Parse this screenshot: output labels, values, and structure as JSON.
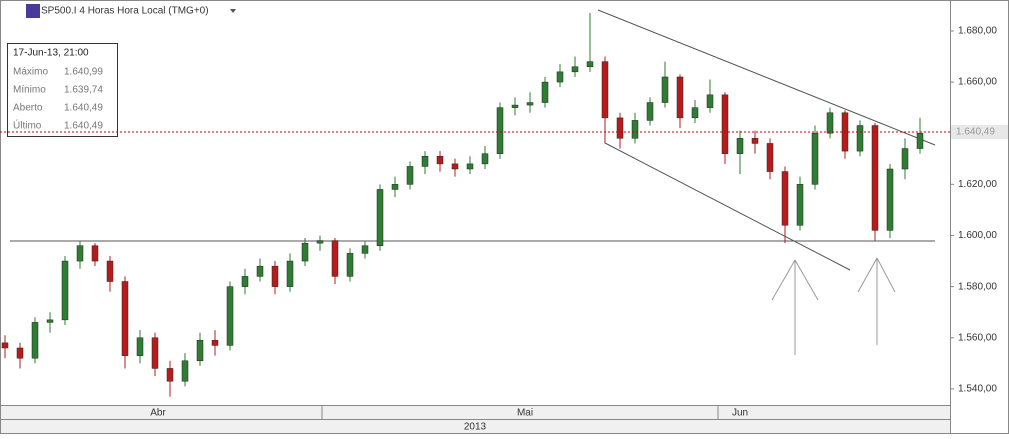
{
  "chart_data": {
    "type": "candlestick",
    "title": "SP500.I 4 Horas Hora Local (TMG+0)",
    "info": {
      "date": "17-Jun-13, 21:00",
      "rows": [
        [
          "Máximo",
          "1.640,99"
        ],
        [
          "Mínimo",
          "1.639,74"
        ],
        [
          "Aberto",
          "1.640,49"
        ],
        [
          "Último",
          "1.640,49"
        ]
      ]
    },
    "last_price": {
      "value": 1.64049,
      "label": "1.640,49"
    },
    "months": [
      "Abr",
      "Mai",
      "Jun"
    ],
    "year": "2013",
    "up_color": "#2e7d32",
    "down_color": "#b71c1c",
    "ylim": [
      1.5337,
      1.6921
    ],
    "yticks": [
      {
        "value": 1.54,
        "label": "1.540,00"
      },
      {
        "value": 1.56,
        "label": "1.560,00"
      },
      {
        "value": 1.58,
        "label": "1.580,00"
      },
      {
        "value": 1.6,
        "label": "1.600,00"
      },
      {
        "value": 1.62,
        "label": "1.620,00"
      },
      {
        "value": 1.64,
        "label": "1.640,00"
      },
      {
        "value": 1.66,
        "label": "1.660,00"
      },
      {
        "value": 1.68,
        "label": "1.680,00"
      }
    ],
    "candles": [
      {
        "o": 1.558,
        "h": 1.561,
        "l": 1.552,
        "c": 1.556
      },
      {
        "o": 1.556,
        "h": 1.558,
        "l": 1.548,
        "c": 1.552
      },
      {
        "o": 1.552,
        "h": 1.568,
        "l": 1.55,
        "c": 1.566
      },
      {
        "o": 1.566,
        "h": 1.57,
        "l": 1.562,
        "c": 1.567
      },
      {
        "o": 1.567,
        "h": 1.592,
        "l": 1.565,
        "c": 1.59
      },
      {
        "o": 1.59,
        "h": 1.598,
        "l": 1.587,
        "c": 1.596
      },
      {
        "o": 1.596,
        "h": 1.597,
        "l": 1.588,
        "c": 1.59
      },
      {
        "o": 1.59,
        "h": 1.592,
        "l": 1.578,
        "c": 1.582
      },
      {
        "o": 1.582,
        "h": 1.584,
        "l": 1.548,
        "c": 1.553
      },
      {
        "o": 1.553,
        "h": 1.563,
        "l": 1.55,
        "c": 1.56
      },
      {
        "o": 1.56,
        "h": 1.562,
        "l": 1.545,
        "c": 1.548
      },
      {
        "o": 1.548,
        "h": 1.551,
        "l": 1.537,
        "c": 1.543
      },
      {
        "o": 1.543,
        "h": 1.554,
        "l": 1.541,
        "c": 1.551
      },
      {
        "o": 1.551,
        "h": 1.562,
        "l": 1.549,
        "c": 1.559
      },
      {
        "o": 1.559,
        "h": 1.563,
        "l": 1.553,
        "c": 1.557
      },
      {
        "o": 1.557,
        "h": 1.582,
        "l": 1.555,
        "c": 1.58
      },
      {
        "o": 1.58,
        "h": 1.587,
        "l": 1.577,
        "c": 1.584
      },
      {
        "o": 1.584,
        "h": 1.591,
        "l": 1.582,
        "c": 1.588
      },
      {
        "o": 1.588,
        "h": 1.59,
        "l": 1.577,
        "c": 1.58
      },
      {
        "o": 1.58,
        "h": 1.593,
        "l": 1.578,
        "c": 1.59
      },
      {
        "o": 1.59,
        "h": 1.599,
        "l": 1.588,
        "c": 1.597
      },
      {
        "o": 1.597,
        "h": 1.6,
        "l": 1.594,
        "c": 1.598
      },
      {
        "o": 1.598,
        "h": 1.599,
        "l": 1.581,
        "c": 1.584
      },
      {
        "o": 1.584,
        "h": 1.595,
        "l": 1.582,
        "c": 1.593
      },
      {
        "o": 1.593,
        "h": 1.598,
        "l": 1.591,
        "c": 1.596
      },
      {
        "o": 1.596,
        "h": 1.62,
        "l": 1.594,
        "c": 1.618
      },
      {
        "o": 1.618,
        "h": 1.623,
        "l": 1.615,
        "c": 1.62
      },
      {
        "o": 1.62,
        "h": 1.629,
        "l": 1.618,
        "c": 1.627
      },
      {
        "o": 1.627,
        "h": 1.633,
        "l": 1.624,
        "c": 1.631
      },
      {
        "o": 1.631,
        "h": 1.633,
        "l": 1.625,
        "c": 1.628
      },
      {
        "o": 1.628,
        "h": 1.63,
        "l": 1.623,
        "c": 1.626
      },
      {
        "o": 1.626,
        "h": 1.631,
        "l": 1.624,
        "c": 1.628
      },
      {
        "o": 1.628,
        "h": 1.635,
        "l": 1.626,
        "c": 1.632
      },
      {
        "o": 1.632,
        "h": 1.652,
        "l": 1.63,
        "c": 1.65
      },
      {
        "o": 1.65,
        "h": 1.654,
        "l": 1.647,
        "c": 1.651
      },
      {
        "o": 1.651,
        "h": 1.656,
        "l": 1.648,
        "c": 1.652
      },
      {
        "o": 1.652,
        "h": 1.662,
        "l": 1.65,
        "c": 1.66
      },
      {
        "o": 1.66,
        "h": 1.667,
        "l": 1.658,
        "c": 1.664
      },
      {
        "o": 1.664,
        "h": 1.67,
        "l": 1.662,
        "c": 1.666
      },
      {
        "o": 1.666,
        "h": 1.687,
        "l": 1.664,
        "c": 1.668
      },
      {
        "o": 1.668,
        "h": 1.67,
        "l": 1.636,
        "c": 1.646
      },
      {
        "o": 1.646,
        "h": 1.648,
        "l": 1.634,
        "c": 1.638
      },
      {
        "o": 1.638,
        "h": 1.648,
        "l": 1.636,
        "c": 1.645
      },
      {
        "o": 1.645,
        "h": 1.654,
        "l": 1.643,
        "c": 1.652
      },
      {
        "o": 1.652,
        "h": 1.668,
        "l": 1.65,
        "c": 1.662
      },
      {
        "o": 1.662,
        "h": 1.663,
        "l": 1.642,
        "c": 1.646
      },
      {
        "o": 1.646,
        "h": 1.653,
        "l": 1.644,
        "c": 1.65
      },
      {
        "o": 1.65,
        "h": 1.661,
        "l": 1.648,
        "c": 1.655
      },
      {
        "o": 1.655,
        "h": 1.656,
        "l": 1.628,
        "c": 1.632
      },
      {
        "o": 1.632,
        "h": 1.641,
        "l": 1.624,
        "c": 1.638
      },
      {
        "o": 1.638,
        "h": 1.641,
        "l": 1.632,
        "c": 1.636
      },
      {
        "o": 1.636,
        "h": 1.638,
        "l": 1.622,
        "c": 1.625
      },
      {
        "o": 1.625,
        "h": 1.627,
        "l": 1.597,
        "c": 1.604
      },
      {
        "o": 1.604,
        "h": 1.623,
        "l": 1.602,
        "c": 1.62
      },
      {
        "o": 1.62,
        "h": 1.643,
        "l": 1.618,
        "c": 1.64
      },
      {
        "o": 1.64,
        "h": 1.65,
        "l": 1.638,
        "c": 1.648
      },
      {
        "o": 1.648,
        "h": 1.649,
        "l": 1.63,
        "c": 1.633
      },
      {
        "o": 1.633,
        "h": 1.645,
        "l": 1.631,
        "c": 1.643
      },
      {
        "o": 1.643,
        "h": 1.644,
        "l": 1.598,
        "c": 1.602
      },
      {
        "o": 1.602,
        "h": 1.628,
        "l": 1.599,
        "c": 1.626
      },
      {
        "o": 1.626,
        "h": 1.638,
        "l": 1.622,
        "c": 1.634
      },
      {
        "o": 1.634,
        "h": 1.646,
        "l": 1.632,
        "c": 1.64
      }
    ]
  }
}
